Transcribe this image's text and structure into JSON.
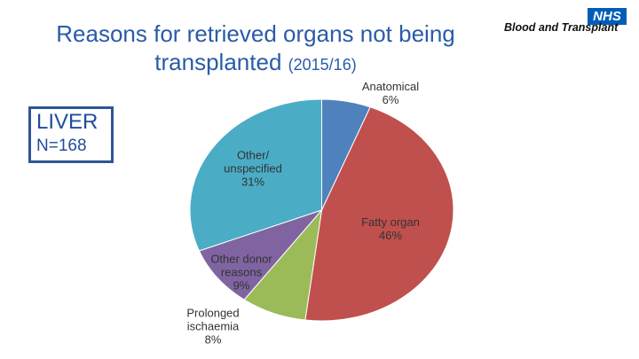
{
  "chart_data": {
    "type": "pie",
    "title": "Reasons for retrieved organs not being transplanted",
    "subtitle": "(2015/16)",
    "categories": [
      "Anatomical",
      "Fatty organ",
      "Prolonged ischaemia",
      "Other donor reasons",
      "Other/ unspecified"
    ],
    "values": [
      6,
      46,
      8,
      9,
      31
    ],
    "value_labels": [
      "6%",
      "46%",
      "8%",
      "9%",
      "31%"
    ],
    "colors": [
      "#4f81bd",
      "#c0504d",
      "#9bbb59",
      "#8064a2",
      "#4bacc6"
    ]
  },
  "panel": {
    "organ": "LIVER",
    "count": "N=168"
  },
  "logo": {
    "badge": "NHS",
    "name": "Blood and Transplant"
  }
}
